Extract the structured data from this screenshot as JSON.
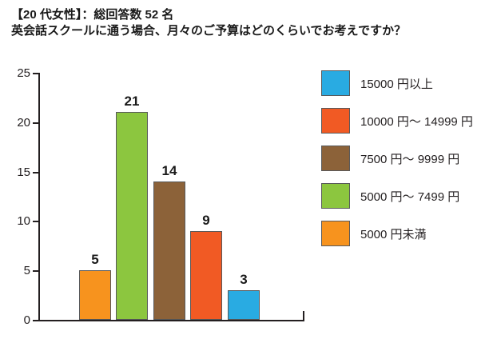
{
  "chart_data": {
    "type": "bar",
    "title": "【20 代女性】：総回答数 52 名",
    "subtitle": "英会話スクールに通う場合、月々のご予算はどのくらいでお考えですか？",
    "categories": [
      "5000 円未満",
      "5000 円〜 7499 円",
      "7500 円〜 9999 円",
      "10000 円〜 14999 円",
      "15000 円以上"
    ],
    "values": [
      5,
      21,
      14,
      9,
      3
    ],
    "bars": [
      {
        "label": "5000 円未満",
        "value": 5,
        "color": "#F7931E"
      },
      {
        "label": "5000 円〜 7499 円",
        "value": 21,
        "color": "#8CC63F"
      },
      {
        "label": "7500 円〜 9999 円",
        "value": 14,
        "color": "#8C6239"
      },
      {
        "label": "10000 円〜 14999 円",
        "value": 9,
        "color": "#F15A24"
      },
      {
        "label": "15000 円以上",
        "value": 3,
        "color": "#29ABE2"
      }
    ],
    "legend": {
      "position": "right",
      "items": [
        {
          "label": "15000 円以上",
          "color": "#29ABE2"
        },
        {
          "label": "10000 円〜 14999 円",
          "color": "#F15A24"
        },
        {
          "label": "7500 円〜 9999 円",
          "color": "#8C6239"
        },
        {
          "label": "5000 円〜 7499 円",
          "color": "#8CC63F"
        },
        {
          "label": "5000 円未満",
          "color": "#F7931E"
        }
      ]
    },
    "yaxis": {
      "min": 0,
      "max": 25,
      "ticks": [
        0,
        5,
        10,
        15,
        20,
        25
      ]
    },
    "xlabel": "",
    "ylabel": "",
    "grid": false,
    "axis_color": "#231F20",
    "bar_outline_color": "#58595B",
    "background_color": "#FFFFFF"
  }
}
